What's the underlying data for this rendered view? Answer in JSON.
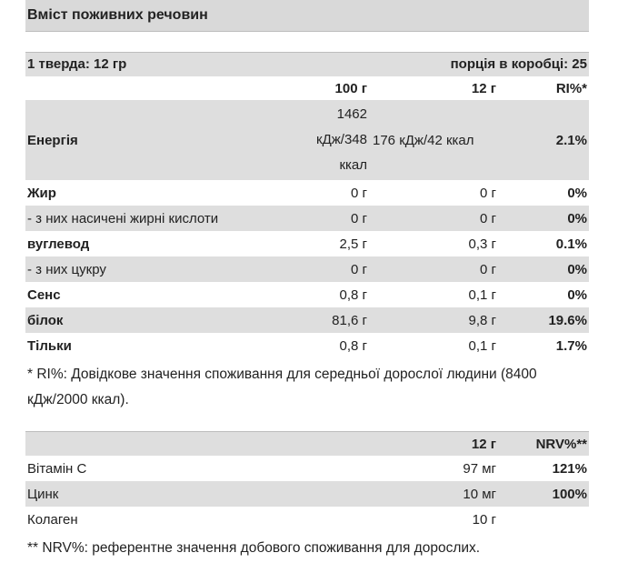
{
  "title": "Вміст поживних речовин",
  "serving": {
    "left": "1 тверда: 12 гр",
    "right": "порція в коробці: 25"
  },
  "table1": {
    "headers": [
      "",
      "100 г",
      "12 г",
      "RI%*"
    ],
    "rows": [
      {
        "name": "Енергія",
        "bold": true,
        "v100": "1462 кДж/348 ккал",
        "v12": "176 кДж/42 ккал",
        "ri": "2.1%"
      },
      {
        "name": "Жир",
        "bold": true,
        "v100": "0 г",
        "v12": "0 г",
        "ri": "0%"
      },
      {
        "name": "- з них насичені жирні кислоти",
        "bold": false,
        "v100": "0 г",
        "v12": "0 г",
        "ri": "0%"
      },
      {
        "name": "вуглевод",
        "bold": true,
        "v100": "2,5 г",
        "v12": "0,3 г",
        "ri": "0.1%"
      },
      {
        "name": "- з них цукру",
        "bold": false,
        "v100": "0 г",
        "v12": "0 г",
        "ri": "0%"
      },
      {
        "name": "Сенс",
        "bold": true,
        "v100": "0,8 г",
        "v12": "0,1 г",
        "ri": "0%"
      },
      {
        "name": "білок",
        "bold": true,
        "v100": "81,6 г",
        "v12": "9,8 г",
        "ri": "19.6%"
      },
      {
        "name": "Тільки",
        "bold": true,
        "v100": "0,8 г",
        "v12": "0,1 г",
        "ri": "1.7%"
      }
    ],
    "energy_lines": [
      "1462",
      "кДж/348",
      "ккал"
    ]
  },
  "footnote1": "* RI%: Довідкове значення споживання для середньої дорослої людини (8400 кДж/2000 ккал).",
  "table2": {
    "headers": [
      "",
      "12 г",
      "NRV%**"
    ],
    "rows": [
      {
        "name": "Вітамін С",
        "v12": "97 мг",
        "nrv": "121%"
      },
      {
        "name": "Цинк",
        "v12": "10 мг",
        "nrv": "100%"
      },
      {
        "name": "Колаген",
        "v12": "10 г",
        "nrv": ""
      }
    ]
  },
  "footnote2": "** NRV%: референтне значення добового споживання для дорослих.",
  "colors": {
    "shade": "#dedede",
    "title_bg": "#d9d9d9",
    "text": "#222222"
  }
}
